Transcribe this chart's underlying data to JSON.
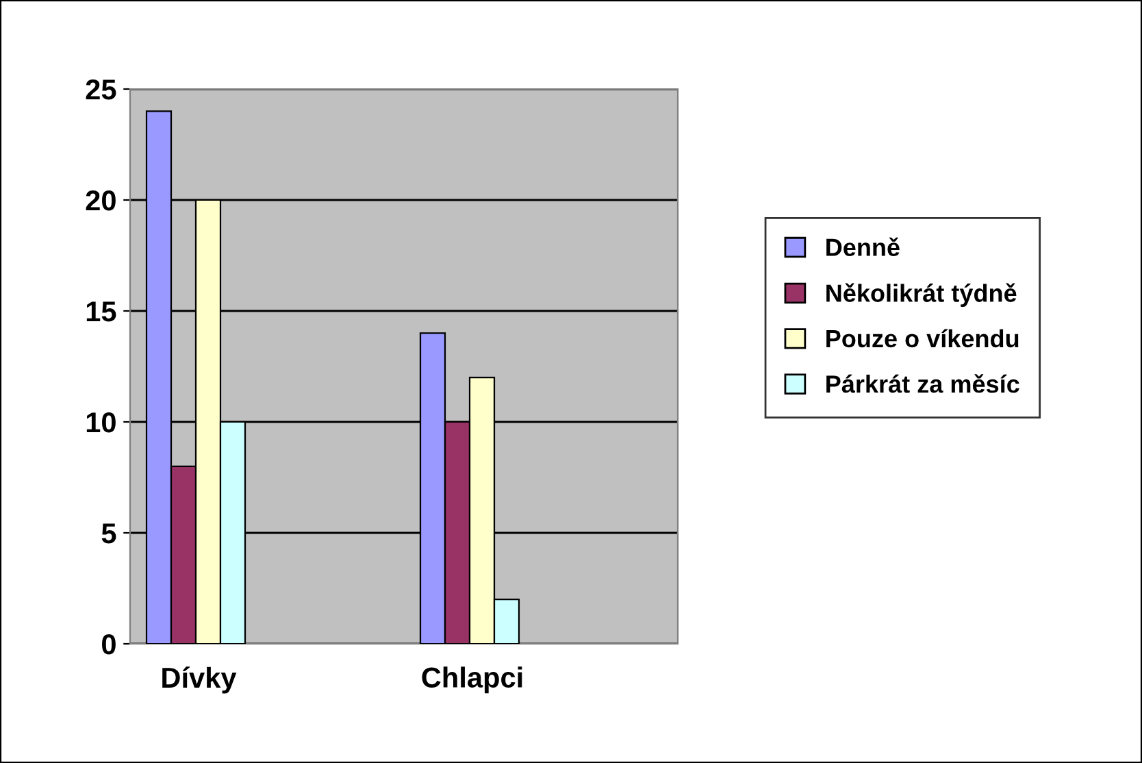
{
  "chart_data": {
    "type": "bar",
    "categories": [
      "Dívky",
      null,
      "Chlapci",
      null
    ],
    "series": [
      {
        "name": "Denně",
        "color": "#9999ff",
        "values": [
          24,
          null,
          14,
          null
        ]
      },
      {
        "name": "Několikrát týdně",
        "color": "#993366",
        "values": [
          8,
          null,
          10,
          null
        ]
      },
      {
        "name": "Pouze o víkendu",
        "color": "#ffffcc",
        "values": [
          20,
          null,
          12,
          null
        ]
      },
      {
        "name": "Párkrát za měsíc",
        "color": "#ccffff",
        "values": [
          10,
          null,
          2,
          null
        ]
      }
    ],
    "ylim": [
      0,
      25
    ],
    "yticks": [
      0,
      5,
      10,
      15,
      20,
      25
    ],
    "grid": "y",
    "legend": "right"
  }
}
